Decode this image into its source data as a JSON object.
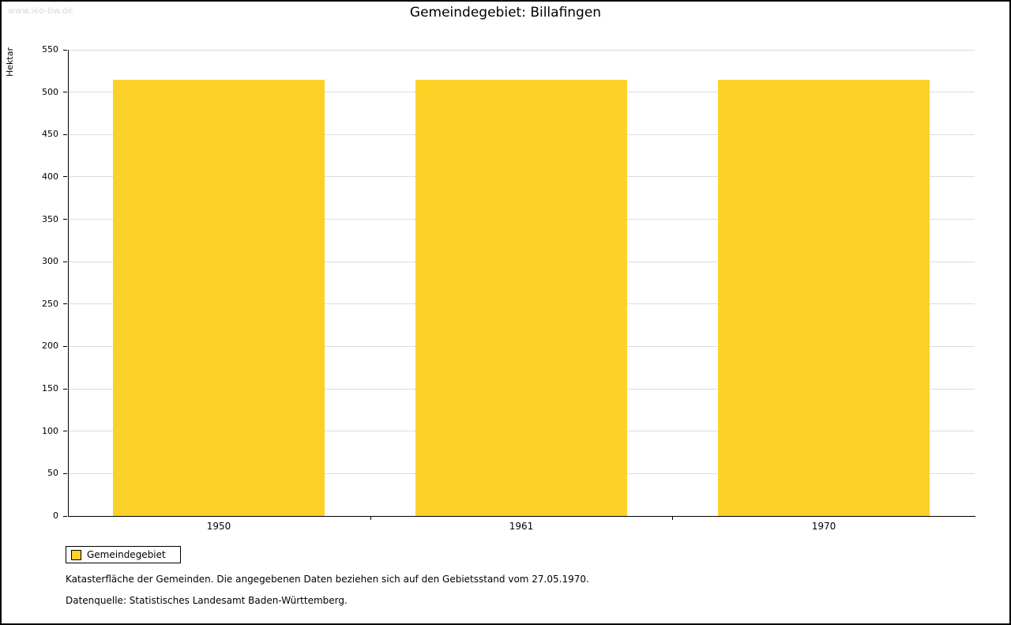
{
  "page": {
    "watermark": "www.leo-bw.de",
    "title": "Gemeindegebiet: Billafingen"
  },
  "legend": {
    "label": "Gemeindegebiet"
  },
  "footnotes": {
    "line1": "Katasterfläche der Gemeinden. Die angegebenen Daten beziehen sich auf den Gebietsstand vom 27.05.1970.",
    "line2": "Datenquelle: Statistisches Landesamt Baden-Württemberg."
  },
  "chart_data": {
    "type": "bar",
    "title": "Gemeindegebiet: Billafingen",
    "categories": [
      "1950",
      "1961",
      "1970"
    ],
    "values": [
      515,
      515,
      515
    ],
    "series_name": "Gemeindegebiet",
    "xlabel": "",
    "ylabel": "Hektar",
    "ylim": [
      0,
      550
    ],
    "ytick_step": 50,
    "grid": true,
    "legend_position": "bottom-left",
    "bar_color": "#FCD229",
    "grid_color": "#DCDCDC",
    "axis_color": "#000000"
  }
}
